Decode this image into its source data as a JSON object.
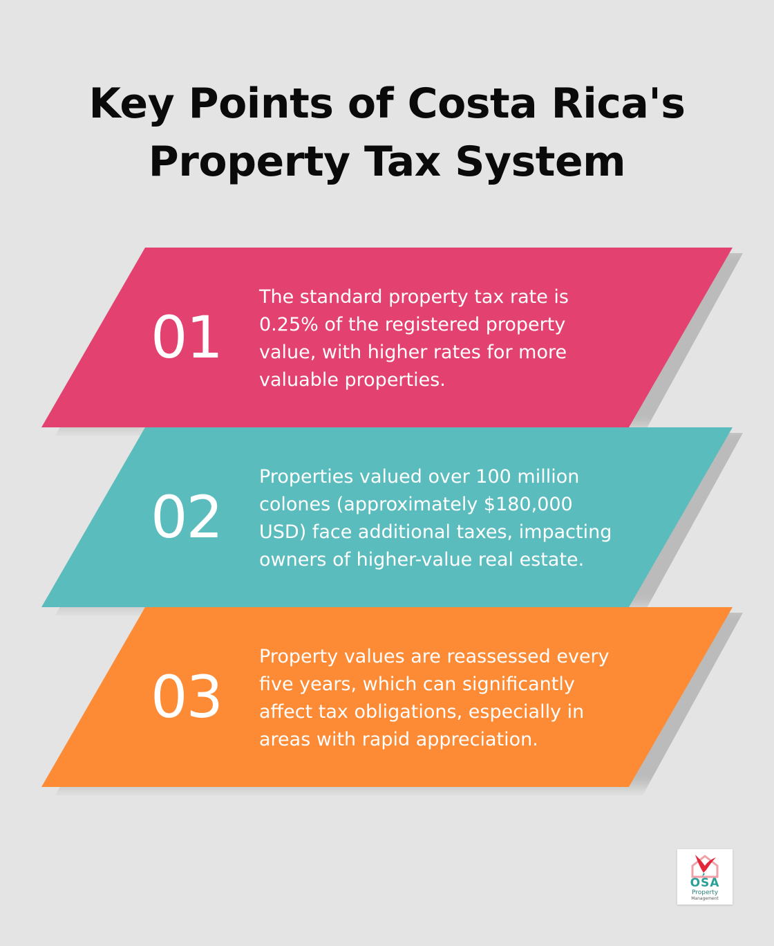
{
  "title": {
    "line1": "Key Points of Costa Rica's",
    "line2": "Property Tax System"
  },
  "colors": {
    "pink": "#e3416f",
    "teal": "#5bbcbd",
    "orange": "#fd8a35",
    "background": "#e3e4e3"
  },
  "items": [
    {
      "number": "01",
      "color": "#e3416f",
      "lines": [
        "The standard property tax rate is",
        "0.25% of the registered property",
        "value, with higher rates for more",
        "valuable properties."
      ]
    },
    {
      "number": "02",
      "color": "#5bbcbd",
      "lines": [
        "Properties valued over 100 million",
        "colones (approximately $180,000",
        "USD) face additional taxes, impacting",
        "owners of higher-value real estate."
      ]
    },
    {
      "number": "03",
      "color": "#fd8a35",
      "lines": [
        "Property values are reassessed every",
        "five years, which can significantly",
        "affect tax obligations, especially in",
        "areas with rapid appreciation."
      ]
    }
  ],
  "logo": {
    "name": "OSA",
    "sub": "Property",
    "sub2": "Management",
    "icon": "bird-house-icon"
  }
}
